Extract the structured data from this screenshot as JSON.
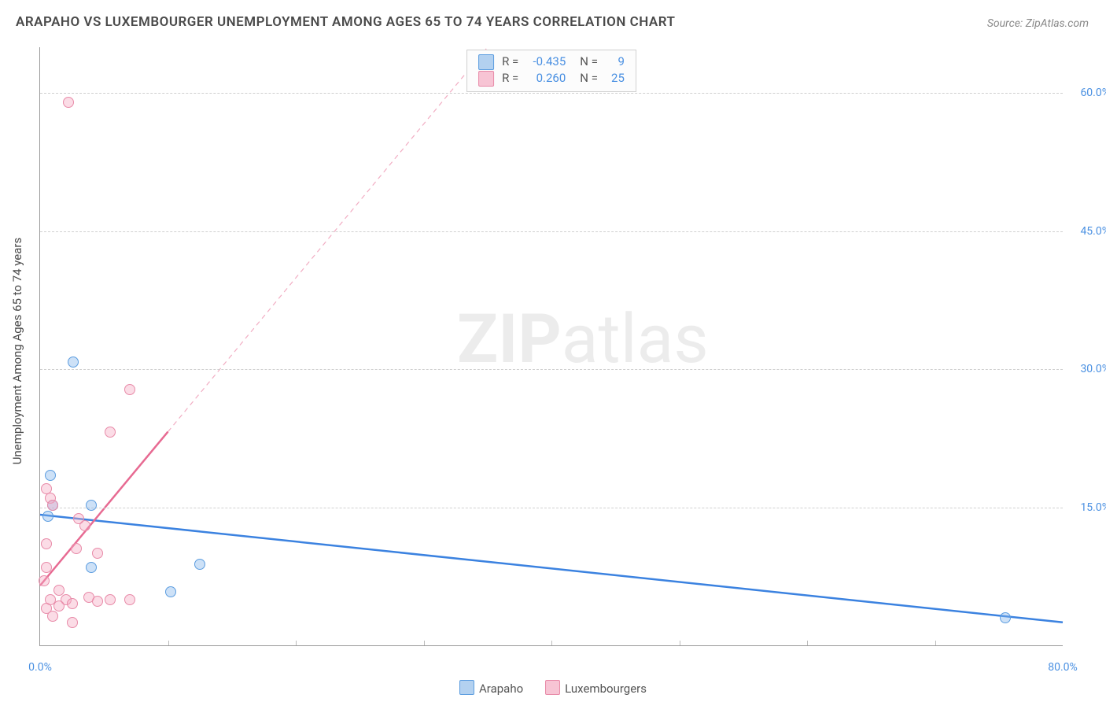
{
  "title": "ARAPAHO VS LUXEMBOURGER UNEMPLOYMENT AMONG AGES 65 TO 74 YEARS CORRELATION CHART",
  "source": "Source: ZipAtlas.com",
  "ylabel": "Unemployment Among Ages 65 to 74 years",
  "watermark_zip": "ZIP",
  "watermark_atlas": "atlas",
  "chart": {
    "type": "scatter",
    "plot_background": "#ffffff",
    "grid_color": "#d0d0d0",
    "axis_color": "#999999",
    "xlim": [
      0,
      80
    ],
    "ylim": [
      0,
      65
    ],
    "x_ticks": [
      0,
      80
    ],
    "x_tick_labels": [
      "0.0%",
      "80.0%"
    ],
    "y_ticks": [
      15,
      30,
      45,
      60
    ],
    "y_tick_labels": [
      "15.0%",
      "30.0%",
      "45.0%",
      "60.0%"
    ],
    "minor_x_gridlines": [
      10,
      20,
      30,
      40,
      50,
      60,
      70
    ],
    "series": [
      {
        "name": "Arapaho",
        "R": "-0.435",
        "N": "9",
        "color_fill": "rgba(129,179,234,0.40)",
        "color_stroke": "#5c9de0",
        "swatch_fill": "#b3d1f0",
        "swatch_stroke": "#5c9de0",
        "marker_size": 14,
        "regression": {
          "x1": 0,
          "y1": 14.2,
          "x2": 80,
          "y2": 2.5,
          "stroke": "#3b82e0",
          "width": 2.5,
          "dash": "none",
          "solid_until_x": 80
        },
        "points": [
          {
            "x": 0.6,
            "y": 14.0
          },
          {
            "x": 0.8,
            "y": 18.5
          },
          {
            "x": 1.0,
            "y": 15.2
          },
          {
            "x": 2.6,
            "y": 30.8
          },
          {
            "x": 4.0,
            "y": 8.5
          },
          {
            "x": 4.0,
            "y": 15.2
          },
          {
            "x": 10.2,
            "y": 5.8
          },
          {
            "x": 12.5,
            "y": 8.8
          },
          {
            "x": 75.5,
            "y": 3.0
          }
        ]
      },
      {
        "name": "Luxembourgers",
        "R": "0.260",
        "N": "25",
        "color_fill": "rgba(244,168,192,0.40)",
        "color_stroke": "#e88aa8",
        "swatch_fill": "#f7c4d4",
        "swatch_stroke": "#e88aa8",
        "marker_size": 14,
        "regression": {
          "x1": 0,
          "y1": 6.5,
          "x2": 35,
          "y2": 65,
          "stroke": "#e76a92",
          "width": 2.5,
          "dash": "6 5",
          "solid_until_x": 10
        },
        "points": [
          {
            "x": 2.2,
            "y": 59.0
          },
          {
            "x": 7.0,
            "y": 27.8
          },
          {
            "x": 5.5,
            "y": 23.2
          },
          {
            "x": 0.5,
            "y": 17.0
          },
          {
            "x": 0.8,
            "y": 16.0
          },
          {
            "x": 1.0,
            "y": 15.2
          },
          {
            "x": 3.5,
            "y": 13.0
          },
          {
            "x": 3.0,
            "y": 13.8
          },
          {
            "x": 0.5,
            "y": 11.0
          },
          {
            "x": 2.8,
            "y": 10.5
          },
          {
            "x": 4.5,
            "y": 10.0
          },
          {
            "x": 0.5,
            "y": 8.5
          },
          {
            "x": 0.3,
            "y": 7.0
          },
          {
            "x": 1.5,
            "y": 6.0
          },
          {
            "x": 0.8,
            "y": 5.0
          },
          {
            "x": 2.0,
            "y": 5.0
          },
          {
            "x": 2.5,
            "y": 4.5
          },
          {
            "x": 3.8,
            "y": 5.2
          },
          {
            "x": 4.5,
            "y": 4.8
          },
          {
            "x": 5.5,
            "y": 5.0
          },
          {
            "x": 7.0,
            "y": 5.0
          },
          {
            "x": 1.0,
            "y": 3.2
          },
          {
            "x": 2.5,
            "y": 2.5
          },
          {
            "x": 0.5,
            "y": 4.0
          },
          {
            "x": 1.5,
            "y": 4.3
          }
        ]
      }
    ],
    "legend_bottom": [
      {
        "label": "Arapaho",
        "swatch_fill": "#b3d1f0",
        "swatch_stroke": "#5c9de0"
      },
      {
        "label": "Luxembourgers",
        "swatch_fill": "#f7c4d4",
        "swatch_stroke": "#e88aa8"
      }
    ],
    "legend_top_val_color": "#4a90e2"
  }
}
